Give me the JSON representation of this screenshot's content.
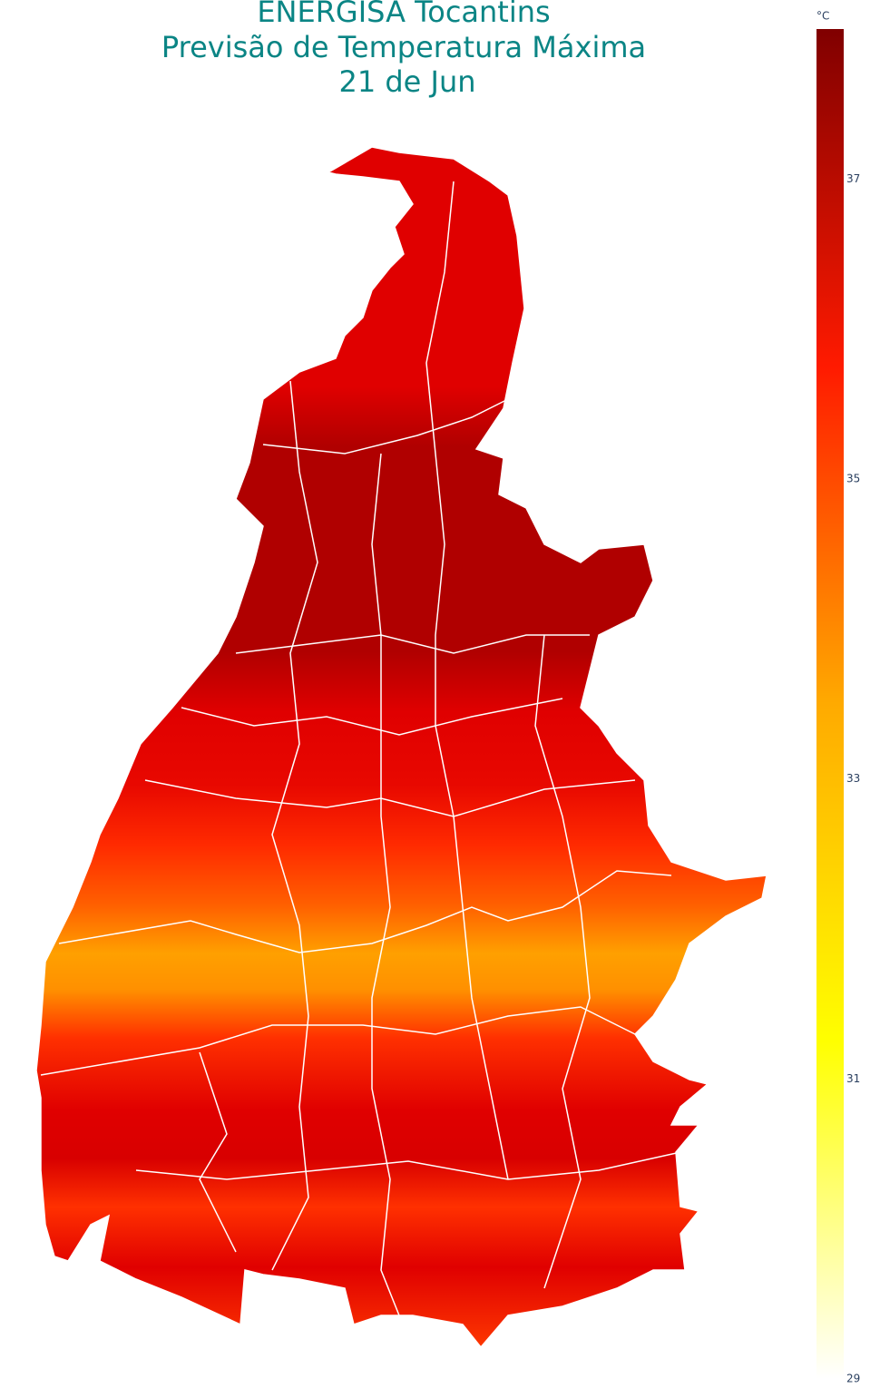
{
  "title": [
    "ENERGISA Tocantins",
    "Previsão de Temperatura Máxima",
    "21 de Jun"
  ],
  "colorbar": {
    "label": "°C",
    "clim": [
      29,
      38
    ],
    "ticks": [
      29,
      31,
      33,
      35,
      37
    ],
    "colorscale": [
      "#ffffff",
      "#ffff00",
      "#ffaa00",
      "#ff1a00",
      "#800000"
    ]
  }
}
